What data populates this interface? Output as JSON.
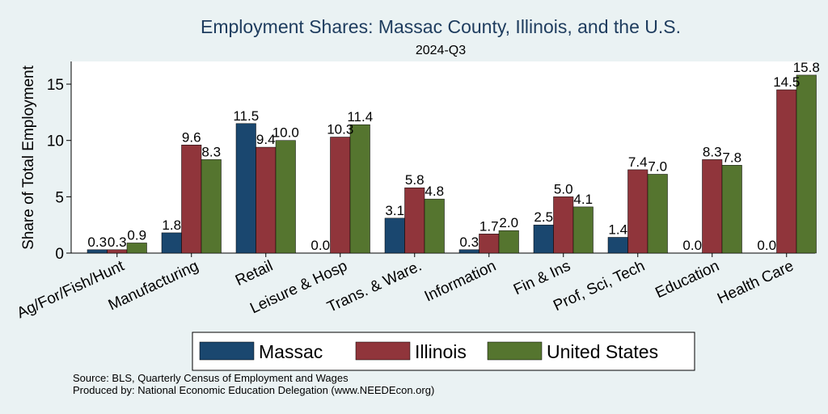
{
  "chart_data": {
    "type": "bar",
    "title": "Employment Shares: Massac County, Illinois, and the U.S.",
    "subtitle": "2024-Q3",
    "ylabel": "Share of Total Employment",
    "xlabel": "",
    "ylim": [
      0,
      17
    ],
    "yticks": [
      0,
      5,
      10,
      15
    ],
    "grid": false,
    "legend_position": "bottom",
    "categories": [
      "Ag/For/Fish/Hunt",
      "Manufacturing",
      "Retail",
      "Leisure & Hosp",
      "Trans. & Ware.",
      "Information",
      "Fin & Ins",
      "Prof, Sci, Tech",
      "Education",
      "Health Care"
    ],
    "series": [
      {
        "name": "Massac",
        "color": "#1a476f",
        "values": [
          0.3,
          1.8,
          11.5,
          0.0,
          3.1,
          0.3,
          2.5,
          1.4,
          0.0,
          0.0
        ]
      },
      {
        "name": "Illinois",
        "color": "#90353b",
        "values": [
          0.3,
          9.6,
          9.4,
          10.3,
          5.8,
          1.7,
          5.0,
          7.4,
          8.3,
          14.5
        ]
      },
      {
        "name": "United States",
        "color": "#55752f",
        "values": [
          0.9,
          8.3,
          10.0,
          11.4,
          4.8,
          2.0,
          4.1,
          7.0,
          7.8,
          15.8
        ]
      }
    ],
    "notes": [
      "Source: BLS, Quarterly Census of Employment and Wages",
      "Produced by: National Economic Education Delegation (www.NEEDEcon.org)"
    ]
  }
}
